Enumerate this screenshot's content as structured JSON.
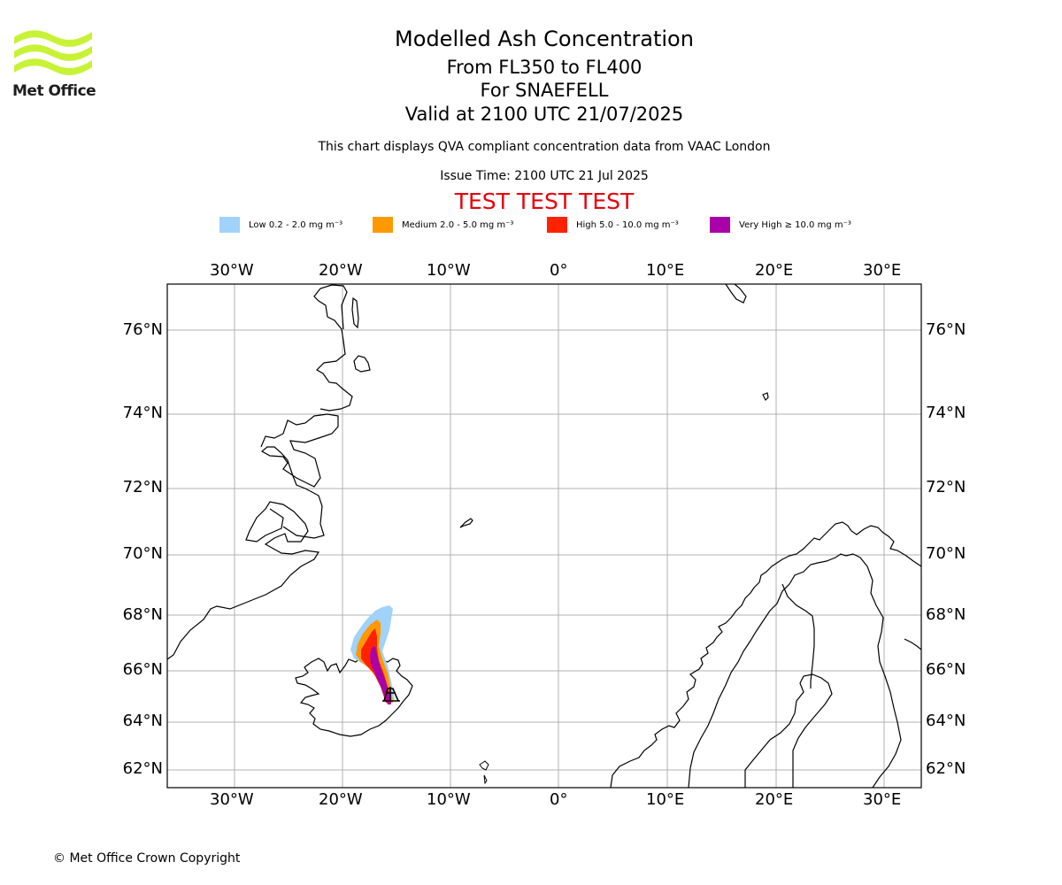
{
  "logo": {
    "text": "Met Office",
    "color": "#c8f236"
  },
  "title": "Modelled Ash Concentration",
  "subtitle_levels": "From FL350 to FL400",
  "subtitle_volcano": "For SNAEFELL",
  "subtitle_valid": "Valid at 2100 UTC 21/07/2025",
  "note": "This chart displays QVA compliant concentration data from VAAC London",
  "issue_time": "Issue Time: 2100 UTC 21 Jul 2025",
  "test_banner": "TEST TEST TEST",
  "legend": [
    {
      "label": "Low 0.2 - 2.0 mg m⁻³",
      "color": "#a0d2fa"
    },
    {
      "label": "Medium 2.0 - 5.0 mg m⁻³",
      "color": "#ff9900"
    },
    {
      "label": "High 5.0 - 10.0 mg m⁻³",
      "color": "#ff2200"
    },
    {
      "label": "Very High ≥ 10.0 mg m⁻³",
      "color": "#aa00aa"
    }
  ],
  "lon_ticks": [
    "30°W",
    "20°W",
    "10°W",
    "0°",
    "10°E",
    "20°E",
    "30°E"
  ],
  "lat_ticks": [
    "76°N",
    "74°N",
    "72°N",
    "70°N",
    "68°N",
    "66°N",
    "64°N",
    "62°N"
  ],
  "copyright": "© Met Office Crown Copyright",
  "volcano_marker": "SNAEFELL"
}
